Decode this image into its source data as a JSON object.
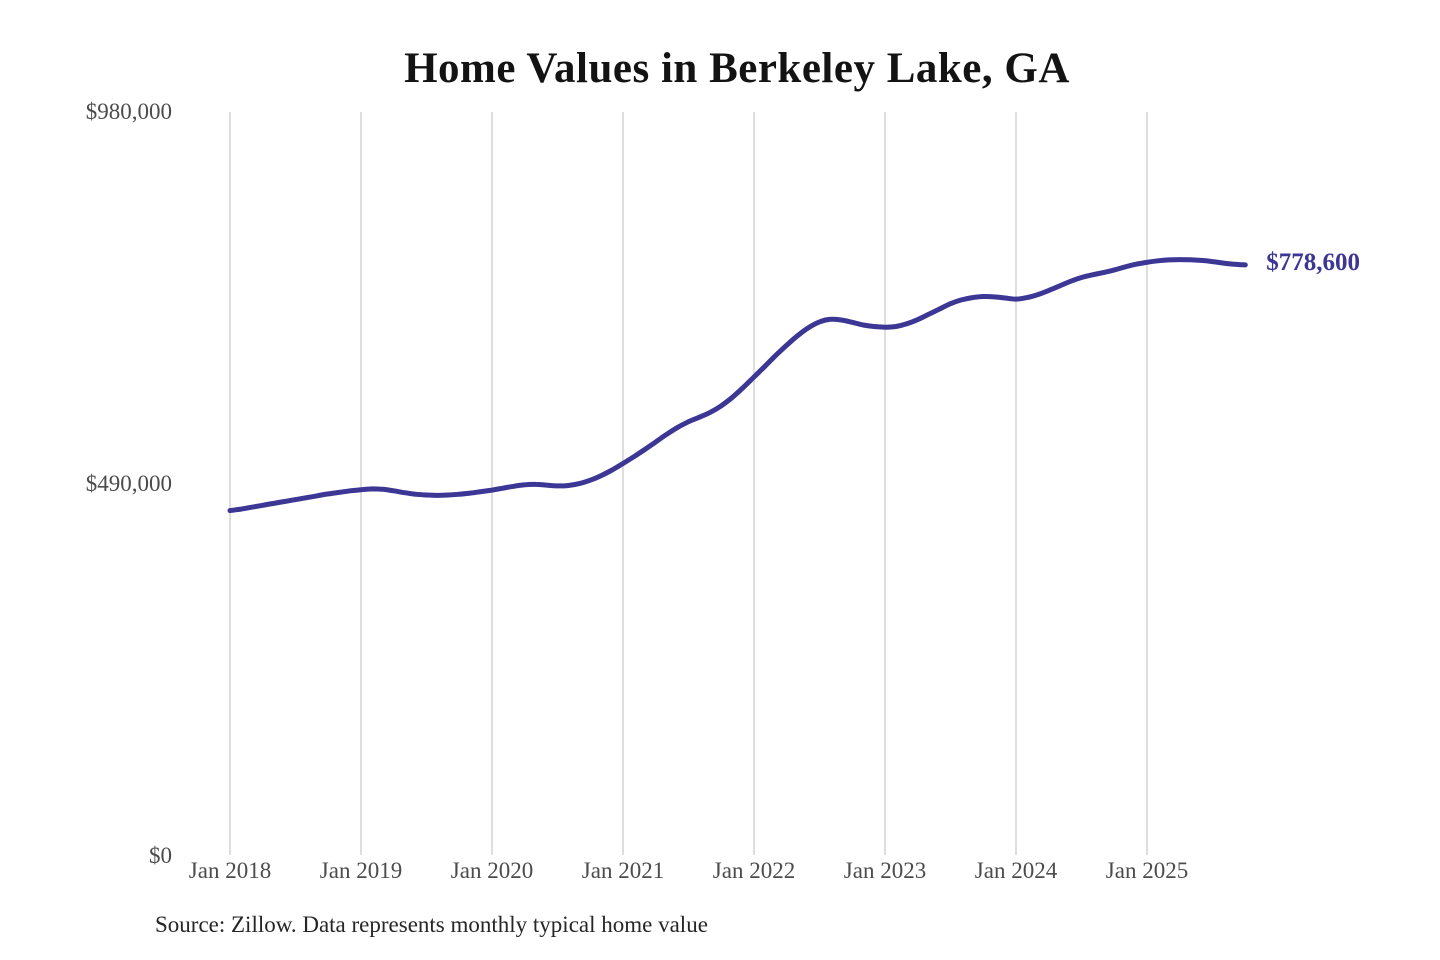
{
  "chart": {
    "title": "Home Values in Berkeley Lake, GA",
    "end_label": "$778,600",
    "source": "Source: Zillow. Data represents monthly typical home value"
  },
  "chart_data": {
    "type": "line",
    "title": "Home Values in Berkeley Lake, GA",
    "series_name": "Monthly typical home value",
    "x_start": "2018-01",
    "x_end": "2025-10",
    "x_tick_labels": [
      "Jan 2018",
      "Jan 2019",
      "Jan 2020",
      "Jan 2021",
      "Jan 2022",
      "Jan 2023",
      "Jan 2024",
      "Jan 2025"
    ],
    "y_ticks": [
      {
        "value": 0,
        "label": "$0"
      },
      {
        "value": 490000,
        "label": "$490,000"
      },
      {
        "value": 980000,
        "label": "$980,000"
      }
    ],
    "ylim": [
      0,
      980000
    ],
    "grid": "vertical",
    "legend": "none",
    "end_annotation": "$778,600",
    "end_value": 778600,
    "line_color": "#3c3694",
    "grid_color": "#cdcdcd",
    "values": [
      455000,
      457000,
      459500,
      462000,
      464500,
      467000,
      469500,
      472000,
      474500,
      477000,
      479000,
      481000,
      482500,
      483500,
      483000,
      481000,
      478500,
      476500,
      475500,
      475000,
      475500,
      476500,
      478000,
      480000,
      482000,
      484500,
      487000,
      489000,
      489500,
      488500,
      487500,
      488000,
      490500,
      495000,
      501000,
      508500,
      517000,
      526000,
      535500,
      545500,
      555500,
      564500,
      572000,
      578000,
      584500,
      593000,
      604000,
      617000,
      631000,
      645000,
      659500,
      673000,
      685500,
      696000,
      703500,
      707000,
      706000,
      703000,
      699500,
      697500,
      696500,
      697500,
      701000,
      706500,
      713500,
      720500,
      727500,
      732500,
      735500,
      737000,
      736500,
      735000,
      733500,
      735500,
      739500,
      745000,
      751000,
      757000,
      762000,
      765500,
      768500,
      772000,
      776000,
      779500,
      782000,
      784000,
      785200,
      785600,
      785300,
      784500,
      783000,
      781000,
      779500,
      778600
    ]
  }
}
